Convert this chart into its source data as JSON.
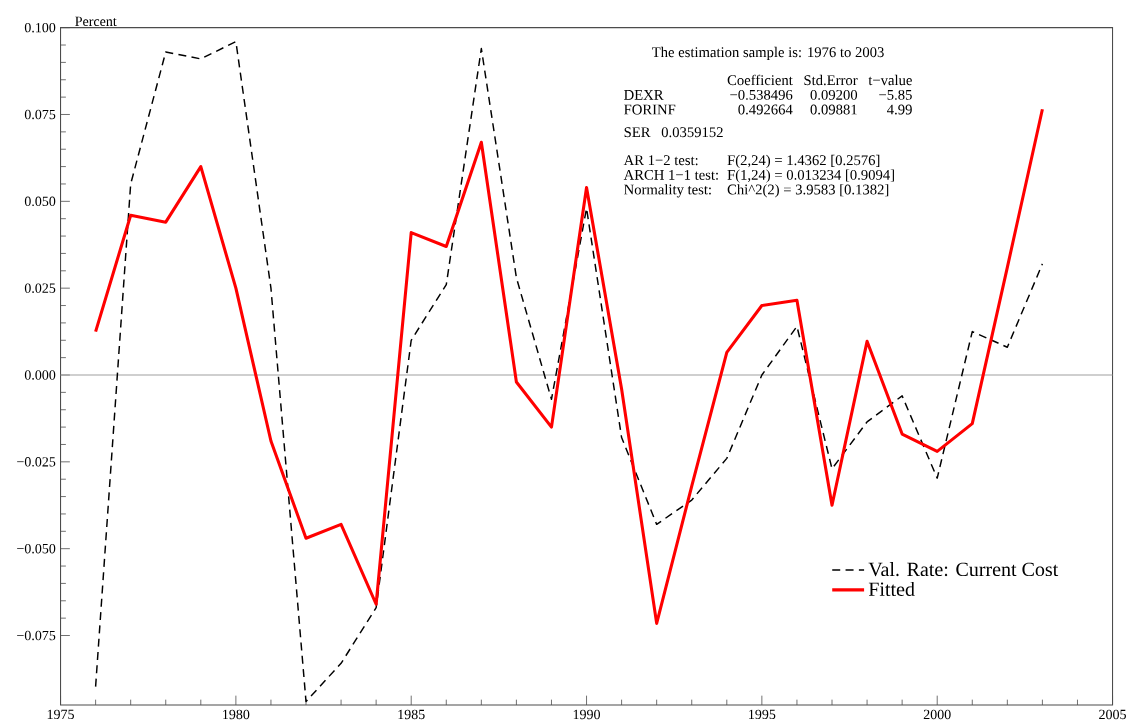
{
  "chart_data": {
    "type": "line",
    "ylabel": "Percent",
    "xlim": [
      1975,
      2005
    ],
    "xticks": [
      1975,
      1980,
      1985,
      1990,
      1995,
      2000,
      2005
    ],
    "ylim": [
      -0.095,
      0.1
    ],
    "yticks": [
      {
        "value": -0.075,
        "label": "−0.075"
      },
      {
        "value": -0.05,
        "label": "−0.050"
      },
      {
        "value": -0.025,
        "label": "−0.025"
      },
      {
        "value": 0,
        "label": "0.000"
      },
      {
        "value": 0.025,
        "label": "0.025"
      },
      {
        "value": 0.05,
        "label": "0.050"
      },
      {
        "value": 0.075,
        "label": "0.075"
      },
      {
        "value": 0.1,
        "label": "0.100"
      }
    ],
    "x": [
      1976,
      1977,
      1978,
      1979,
      1980,
      1981,
      1982,
      1983,
      1984,
      1985,
      1986,
      1987,
      1988,
      1989,
      1990,
      1991,
      1992,
      1993,
      1994,
      1995,
      1996,
      1997,
      1998,
      1999,
      2000,
      2001,
      2002,
      2003
    ],
    "series": [
      {
        "name": "Val. Rate: Current Cost",
        "color": "#000000",
        "line_style": "dashed",
        "values": [
          -0.0897,
          0.055,
          0.093,
          0.091,
          0.096,
          0.025,
          -0.094,
          -0.083,
          -0.067,
          0.01,
          0.026,
          0.094,
          0.028,
          -0.007,
          0.048,
          -0.018,
          -0.043,
          -0.036,
          -0.024,
          0.0,
          0.014,
          -0.027,
          -0.0135,
          -0.006,
          -0.0297,
          0.0125,
          0.008,
          0.032
        ]
      },
      {
        "name": "Fitted",
        "color": "#ff0000",
        "line_style": "solid",
        "values": [
          0.0125,
          0.046,
          0.044,
          0.06,
          0.025,
          -0.019,
          -0.047,
          -0.043,
          -0.066,
          0.041,
          0.037,
          0.067,
          -0.002,
          -0.015,
          0.054,
          -0.004,
          -0.0715,
          -0.032,
          0.0065,
          0.02,
          0.0215,
          -0.0375,
          0.0097,
          -0.017,
          -0.022,
          -0.014,
          0.031,
          0.0765
        ]
      }
    ],
    "ref_lines": [
      {
        "axis": "y",
        "value": 0,
        "color": "#a0a0a0"
      }
    ],
    "legend": "bottom right",
    "grid": false,
    "annotations": [
      "The estimation sample is: 1976 to 2003",
      "Coefficient",
      "Std.Error",
      "t−value",
      "DEXR",
      "−0.538496",
      "0.09200",
      "−5.85",
      "FORINF",
      "0.492664",
      "0.09881",
      "4.99",
      "SER",
      "0.0359152",
      "AR 1−2 test:",
      "F(2,24) = 1.4362 [0.2576]",
      "ARCH 1−1 test:",
      "F(1,24) = 0.013234 [0.9094]",
      "Normality test:",
      "Chi^2(2) = 3.9583 [0.1382]"
    ]
  }
}
